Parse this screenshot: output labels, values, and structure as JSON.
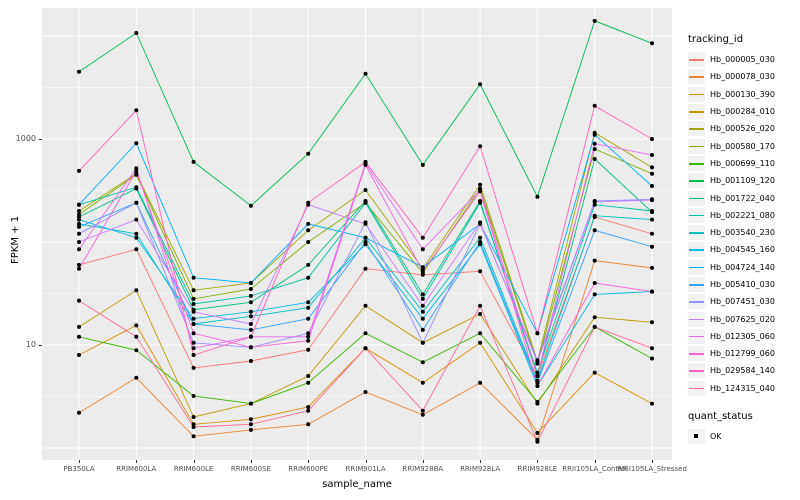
{
  "chart_data": {
    "type": "line",
    "title": "",
    "xlabel": "sample_name",
    "ylabel": "FPKM + 1",
    "y_scale": "log10",
    "ylim": [
      1,
      30000
    ],
    "grid": true,
    "panel_bg": "#EBEBEB",
    "grid_color": "#FFFFFF",
    "point_color": "#000000",
    "y_tick_labels": [
      {
        "value": 1000,
        "label": "1000"
      },
      {
        "value": 10,
        "label": "10"
      }
    ],
    "y_major_gridlines": [
      1,
      10,
      100,
      1000,
      10000
    ],
    "y_minor_gridlines": [
      3.162,
      31.62,
      316.2,
      3162
    ],
    "x_categories": [
      "PB350LA",
      "RRIM600LA",
      "RRIM600LE",
      "RRIM600SE",
      "RRIM600PE",
      "RRIM901LA",
      "RRIM928BA",
      "RRIM928LA",
      "RRIM928LE",
      "RRII105LA_Control",
      "RRII105LA_Stressed"
    ],
    "legend": {
      "color_title": "tracking_id",
      "shape_title": "quant_status",
      "shape_items": [
        {
          "label": "OK"
        }
      ]
    },
    "series": [
      {
        "tracking_id": "Hb_000005_030",
        "color": "#F8766D",
        "quant_status": "OK",
        "values": [
          60,
          85,
          6.0,
          7.0,
          9.0,
          55,
          48,
          52,
          5.0,
          175,
          120
        ]
      },
      {
        "tracking_id": "Hb_000078_030",
        "color": "#EA8331",
        "quant_status": "OK",
        "values": [
          2.2,
          4.8,
          1.3,
          1.5,
          1.7,
          3.5,
          2.1,
          4.3,
          1.2,
          66,
          56
        ]
      },
      {
        "tracking_id": "Hb_000130_390",
        "color": "#D89000",
        "quant_status": "OK",
        "values": [
          8.0,
          15.5,
          1.7,
          1.9,
          2.5,
          9.3,
          4.3,
          10.5,
          1.4,
          5.4,
          2.7
        ]
      },
      {
        "tracking_id": "Hb_000284_010",
        "color": "#C09B00",
        "quant_status": "OK",
        "values": [
          15,
          34,
          2.0,
          2.7,
          5.0,
          24,
          10.5,
          20,
          2.7,
          18.6,
          16.6
        ]
      },
      {
        "tracking_id": "Hb_000526_020",
        "color": "#A3A500",
        "quant_status": "OK",
        "values": [
          200,
          460,
          34,
          40,
          130,
          320,
          55,
          360,
          7.0,
          1150,
          530
        ]
      },
      {
        "tracking_id": "Hb_000580_170",
        "color": "#7CAE00",
        "quant_status": "OK",
        "values": [
          185,
          450,
          28,
          35,
          100,
          240,
          50,
          330,
          6.6,
          800,
          460
        ]
      },
      {
        "tracking_id": "Hb_000699_110",
        "color": "#39B600",
        "quant_status": "OK",
        "values": [
          12,
          8.9,
          3.2,
          2.7,
          4.3,
          13,
          6.8,
          13,
          2.8,
          15,
          7.4
        ]
      },
      {
        "tracking_id": "Hb_001109_120",
        "color": "#00BB4E",
        "quant_status": "OK",
        "values": [
          4500,
          10700,
          600,
          225,
          720,
          4300,
          560,
          3400,
          275,
          14000,
          8500
        ]
      },
      {
        "tracking_id": "Hb_001722_040",
        "color": "#00BF7D",
        "quant_status": "OK",
        "values": [
          175,
          330,
          22,
          26,
          60,
          250,
          31,
          250,
          5.0,
          640,
          195
        ]
      },
      {
        "tracking_id": "Hb_002221_080",
        "color": "#00C1A3",
        "quant_status": "OK",
        "values": [
          230,
          340,
          25,
          30,
          45,
          240,
          28,
          240,
          5.4,
          230,
          200
        ]
      },
      {
        "tracking_id": "Hb_003540_230",
        "color": "#00BFC4",
        "quant_status": "OK",
        "values": [
          150,
          120,
          16,
          19,
          23,
          110,
          21,
          110,
          4.5,
          180,
          165
        ]
      },
      {
        "tracking_id": "Hb_004545_160",
        "color": "#00BAE0",
        "quant_status": "OK",
        "values": [
          165,
          110,
          18,
          21,
          26,
          95,
          18,
          95,
          4.0,
          31,
          33
        ]
      },
      {
        "tracking_id": "Hb_004724_140",
        "color": "#00B0F6",
        "quant_status": "OK",
        "values": [
          230,
          910,
          45,
          40,
          150,
          110,
          57,
          150,
          13,
          1100,
          350
        ]
      },
      {
        "tracking_id": "Hb_005410_030",
        "color": "#35A2FF",
        "quant_status": "OK",
        "values": [
          140,
          240,
          16,
          14,
          18,
          100,
          14,
          100,
          4.3,
          130,
          90
        ]
      },
      {
        "tracking_id": "Hb_007451_030",
        "color": "#9590FF",
        "quant_status": "OK",
        "values": [
          120,
          240,
          10.5,
          9.5,
          13,
          155,
          10.5,
          150,
          7.1,
          250,
          260
        ]
      },
      {
        "tracking_id": "Hb_007625_020",
        "color": "#C77CFF",
        "quant_status": "OK",
        "values": [
          100,
          165,
          21,
          16,
          230,
          150,
          24,
          155,
          6.8,
          245,
          255
        ]
      },
      {
        "tracking_id": "Hb_012305_060",
        "color": "#E76BF3",
        "quant_status": "OK",
        "values": [
          85,
          520,
          9.3,
          12,
          12,
          580,
          85,
          320,
          5.0,
          900,
          700
        ]
      },
      {
        "tracking_id": "Hb_012799_060",
        "color": "#FA62DB",
        "quant_status": "OK",
        "values": [
          55,
          490,
          13,
          9.5,
          11,
          560,
          52,
          310,
          4.0,
          40,
          33
        ]
      },
      {
        "tracking_id": "Hb_029584_140",
        "color": "#FF62BC",
        "quant_status": "OK",
        "values": [
          490,
          1900,
          8.0,
          12,
          240,
          600,
          110,
          850,
          13,
          2100,
          1000
        ]
      },
      {
        "tracking_id": "Hb_124315_040",
        "color": "#FF6A98",
        "quant_status": "OK",
        "values": [
          27,
          12,
          1.6,
          1.7,
          2.3,
          9.3,
          2.3,
          24,
          1.15,
          15,
          9.3
        ]
      }
    ]
  }
}
